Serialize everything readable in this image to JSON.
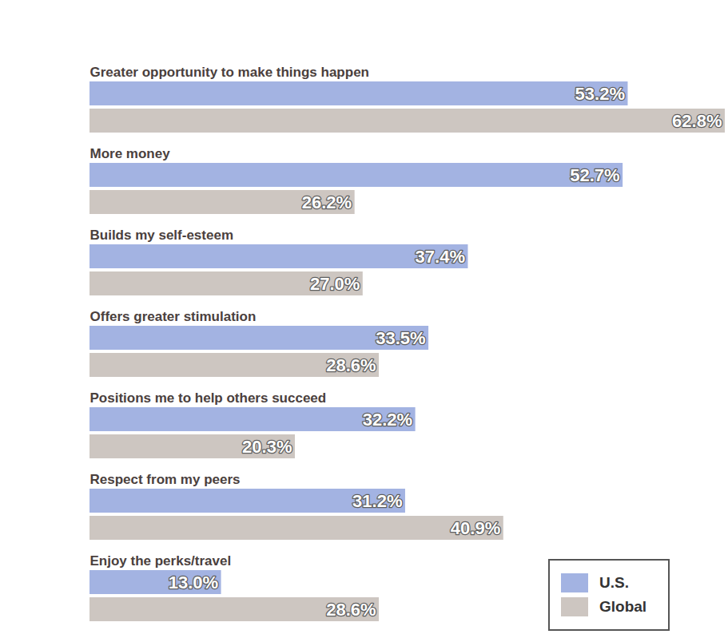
{
  "chart_data": {
    "type": "bar",
    "orientation": "horizontal",
    "categories": [
      "Greater opportunity to make things happen",
      "More money",
      "Builds my self-esteem",
      "Offers greater stimulation",
      "Positions me to help others succeed",
      "Respect from my peers",
      "Enjoy the perks/travel"
    ],
    "series": [
      {
        "name": "U.S.",
        "color": "#a3b3e2",
        "values": [
          53.2,
          52.7,
          37.4,
          33.5,
          32.2,
          31.2,
          13.0
        ],
        "value_labels": [
          "53.2%",
          "52.7%",
          "37.4%",
          "33.5%",
          "32.2%",
          "31.2%",
          "13.0%"
        ]
      },
      {
        "name": "Global",
        "color": "#cdc6c1",
        "values": [
          62.8,
          26.2,
          27.0,
          28.6,
          20.3,
          40.9,
          28.6
        ],
        "value_labels": [
          "62.8%",
          "26.2%",
          "27.0%",
          "28.6%",
          "20.3%",
          "40.9%",
          "28.6%"
        ]
      }
    ],
    "data_labels": true,
    "tick_labels": false,
    "grid": false,
    "legend": "bottom-right"
  }
}
